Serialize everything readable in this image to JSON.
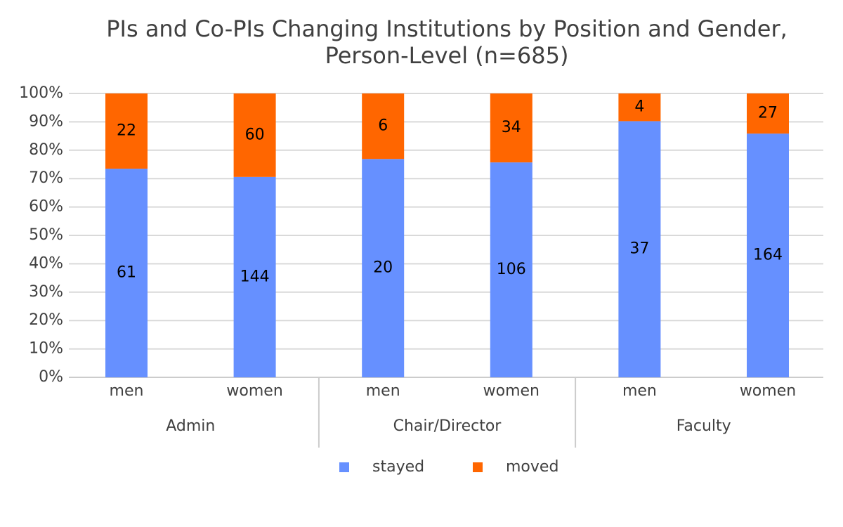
{
  "chart_data": {
    "type": "bar",
    "stack": "percent",
    "title": [
      "PIs and Co-PIs Changing Institutions by Position and Gender,",
      "Person-Level (n=685)"
    ],
    "categories": [
      "men",
      "women",
      "men",
      "women",
      "men",
      "women"
    ],
    "groups": [
      "Admin",
      "Chair/Director",
      "Faculty"
    ],
    "series": [
      {
        "name": "stayed",
        "color": "#6690ff",
        "values": [
          61,
          144,
          20,
          106,
          37,
          164
        ]
      },
      {
        "name": "moved",
        "color": "#ff6600",
        "values": [
          22,
          60,
          6,
          34,
          4,
          27
        ]
      }
    ],
    "ylim": [
      0,
      100
    ],
    "yticks": [
      {
        "value": 0,
        "label": "0%"
      },
      {
        "value": 10,
        "label": "10%"
      },
      {
        "value": 20,
        "label": "20%"
      },
      {
        "value": 30,
        "label": "30%"
      },
      {
        "value": 40,
        "label": "40%"
      },
      {
        "value": 50,
        "label": "50%"
      },
      {
        "value": 60,
        "label": "60%"
      },
      {
        "value": 70,
        "label": "70%"
      },
      {
        "value": 80,
        "label": "80%"
      },
      {
        "value": 90,
        "label": "90%"
      },
      {
        "value": 100,
        "label": "100%"
      }
    ],
    "grid": true,
    "legend": "bottom"
  }
}
